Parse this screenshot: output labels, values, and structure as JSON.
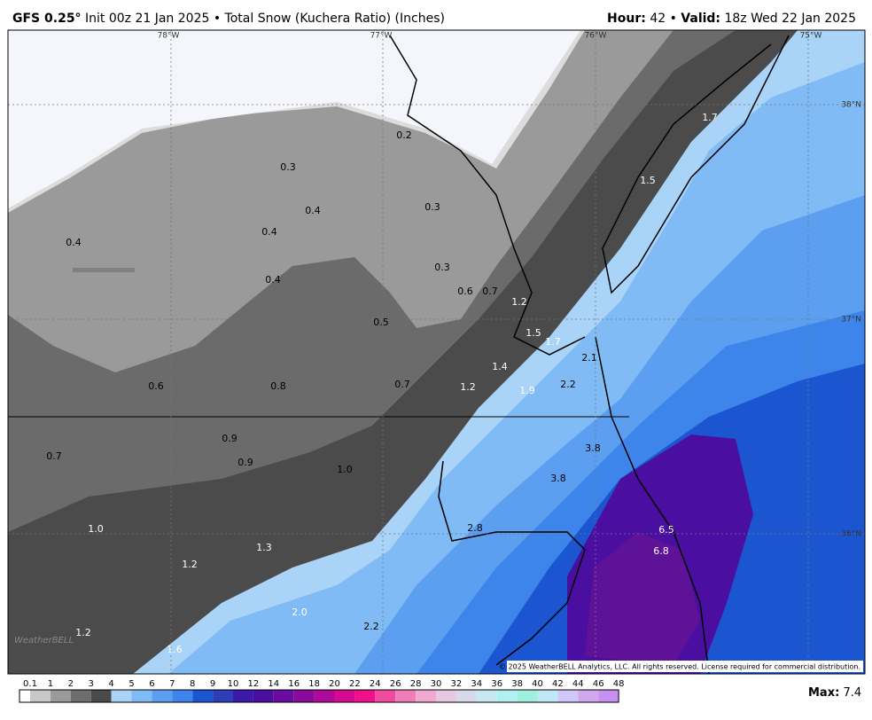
{
  "header": {
    "model": "GFS 0.25°",
    "description": "Init 00z 21 Jan 2025 • Total Snow (Kuchera Ratio) (Inches)",
    "hour_label": "Hour:",
    "hour": "42 •",
    "valid_label": "Valid:",
    "valid": "18z Wed 22 Jan 2025"
  },
  "map": {
    "longitudes": [
      "78°W",
      "77°W",
      "76°W",
      "75°W"
    ],
    "latitudes": [
      "38°N",
      "37°N",
      "36°N"
    ],
    "contour_labels": [
      "0.2",
      "0.3",
      "0.4",
      "0.3",
      "0.4",
      "0.4",
      "0.3",
      "0.4",
      "0.6",
      "0.7",
      "1.2",
      "0.5",
      "1.5",
      "1.7",
      "1.4",
      "2.1",
      "0.6",
      "0.8",
      "0.7",
      "1.2",
      "1.9",
      "2.2",
      "0.9",
      "0.9",
      "0.7",
      "1.0",
      "3.8",
      "3.8",
      "2.8",
      "6.5",
      "6.8",
      "1.0",
      "1.3",
      "1.2",
      "2.0",
      "2.2",
      "1.2",
      "1.6",
      "1.7",
      "1.5"
    ],
    "logo": "WeatherBELL",
    "copyright": "© 2025 WeatherBELL Analytics, LLC. All rights reserved. License required for commercial distribution."
  },
  "colorbar": {
    "labels": [
      "0.1",
      "1",
      "2",
      "3",
      "4",
      "5",
      "6",
      "7",
      "8",
      "9",
      "10",
      "12",
      "14",
      "16",
      "18",
      "20",
      "22",
      "24",
      "26",
      "28",
      "30",
      "32",
      "34",
      "36",
      "38",
      "40",
      "42",
      "44",
      "46",
      "48"
    ],
    "colors": [
      "#ffffff",
      "#c8c8c8",
      "#9a9a9a",
      "#6e6e6e",
      "#4a4a4a",
      "#a9d3f7",
      "#80bbf5",
      "#5c9ff0",
      "#3d85ea",
      "#1c55d0",
      "#2c3fb8",
      "#3b1aa8",
      "#4a0fa0",
      "#6a0ca0",
      "#8a0a9c",
      "#b0089a",
      "#d40a90",
      "#f0108a",
      "#f04aa0",
      "#f07cb8",
      "#f2a8d0",
      "#e6c8e0",
      "#d8d8ea",
      "#c8e8f0",
      "#b0f0f0",
      "#a0f0e0",
      "#c0e8f8",
      "#d0c8f8",
      "#d0a8f0",
      "#c890f0"
    ]
  },
  "max": {
    "label": "Max:",
    "value": "7.4"
  }
}
